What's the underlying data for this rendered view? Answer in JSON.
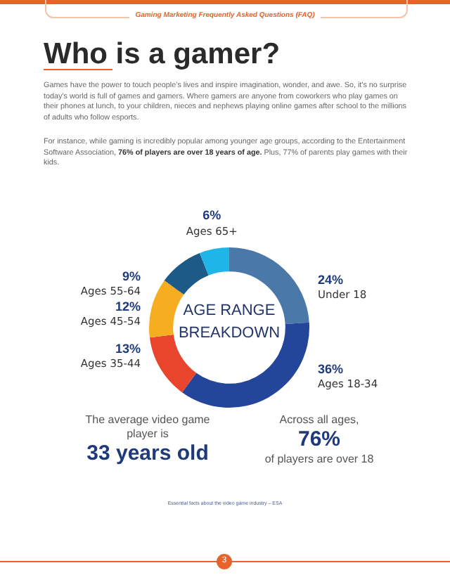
{
  "chart_data": {
    "type": "donut",
    "title": "Who is a gamer?",
    "subtitle": "Gaming Marketing Frequently Asked Questions (FAQ)",
    "categories": [
      "Under 18",
      "Ages 18-34",
      "Ages 35-44",
      "Ages 45-54",
      "Ages 55-64",
      "Ages 65+"
    ],
    "values": [
      24,
      36,
      13,
      12,
      9,
      6
    ],
    "colors": [
      "#4a78a8",
      "#24469a",
      "#e8452c",
      "#f6ae20",
      "#1e5a88",
      "#1fb5e8"
    ],
    "value_labels": [
      "24%",
      "36%",
      "13%",
      "12%",
      "9%",
      "6%"
    ],
    "annotations": [
      "Games have the power to touch people’s lives and inspire imagination, wonder, and awe. So, it’s no surprise today’s world is full of games and gamers. Where gamers are anyone from coworkers who play games on their phones at lunch, to your children, nieces and nephews playing online games after school to the millions of adults who follow esports.",
      "For instance, while gaming is incredibly popular among younger age groups, according to the Entertainment Software Association,",
      "76% of players are over 18 years of age.",
      "Plus, 77% of parents play games with their kids.",
      "AGE RANGE BREAKDOWN",
      "The average video game player is",
      "33 years old",
      "Across all ages,",
      "76%",
      "of players are over 18",
      "Essential facts about the video game industry – ESA",
      "3"
    ],
    "legend": false
  }
}
